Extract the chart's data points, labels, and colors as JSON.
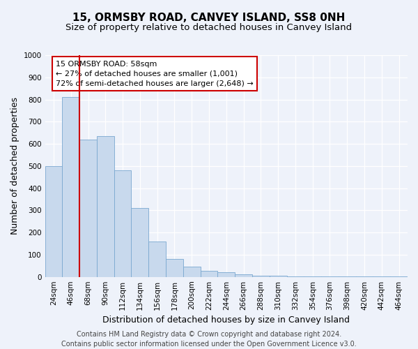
{
  "title": "15, ORMSBY ROAD, CANVEY ISLAND, SS8 0NH",
  "subtitle": "Size of property relative to detached houses in Canvey Island",
  "xlabel": "Distribution of detached houses by size in Canvey Island",
  "ylabel": "Number of detached properties",
  "bar_labels": [
    "24sqm",
    "46sqm",
    "68sqm",
    "90sqm",
    "112sqm",
    "134sqm",
    "156sqm",
    "178sqm",
    "200sqm",
    "222sqm",
    "244sqm",
    "266sqm",
    "288sqm",
    "310sqm",
    "332sqm",
    "354sqm",
    "376sqm",
    "398sqm",
    "420sqm",
    "442sqm",
    "464sqm"
  ],
  "bar_values": [
    500,
    810,
    620,
    635,
    480,
    312,
    160,
    80,
    46,
    26,
    22,
    12,
    6,
    4,
    2,
    2,
    1,
    1,
    1,
    1,
    1
  ],
  "bar_color": "#c8d9ed",
  "bar_edge_color": "#7aa8d0",
  "vline_x": 1.5,
  "vline_color": "#cc0000",
  "ylim": [
    0,
    1000
  ],
  "yticks": [
    0,
    100,
    200,
    300,
    400,
    500,
    600,
    700,
    800,
    900,
    1000
  ],
  "annotation_title": "15 ORMSBY ROAD: 58sqm",
  "annotation_line1": "← 27% of detached houses are smaller (1,001)",
  "annotation_line2": "72% of semi-detached houses are larger (2,648) →",
  "annotation_box_facecolor": "#ffffff",
  "annotation_box_edgecolor": "#cc0000",
  "footer_line1": "Contains HM Land Registry data © Crown copyright and database right 2024.",
  "footer_line2": "Contains public sector information licensed under the Open Government Licence v3.0.",
  "background_color": "#eef2fa",
  "grid_color": "#ffffff",
  "title_fontsize": 11,
  "subtitle_fontsize": 9.5,
  "axis_label_fontsize": 9,
  "tick_fontsize": 7.5,
  "annotation_fontsize": 8,
  "footer_fontsize": 7
}
